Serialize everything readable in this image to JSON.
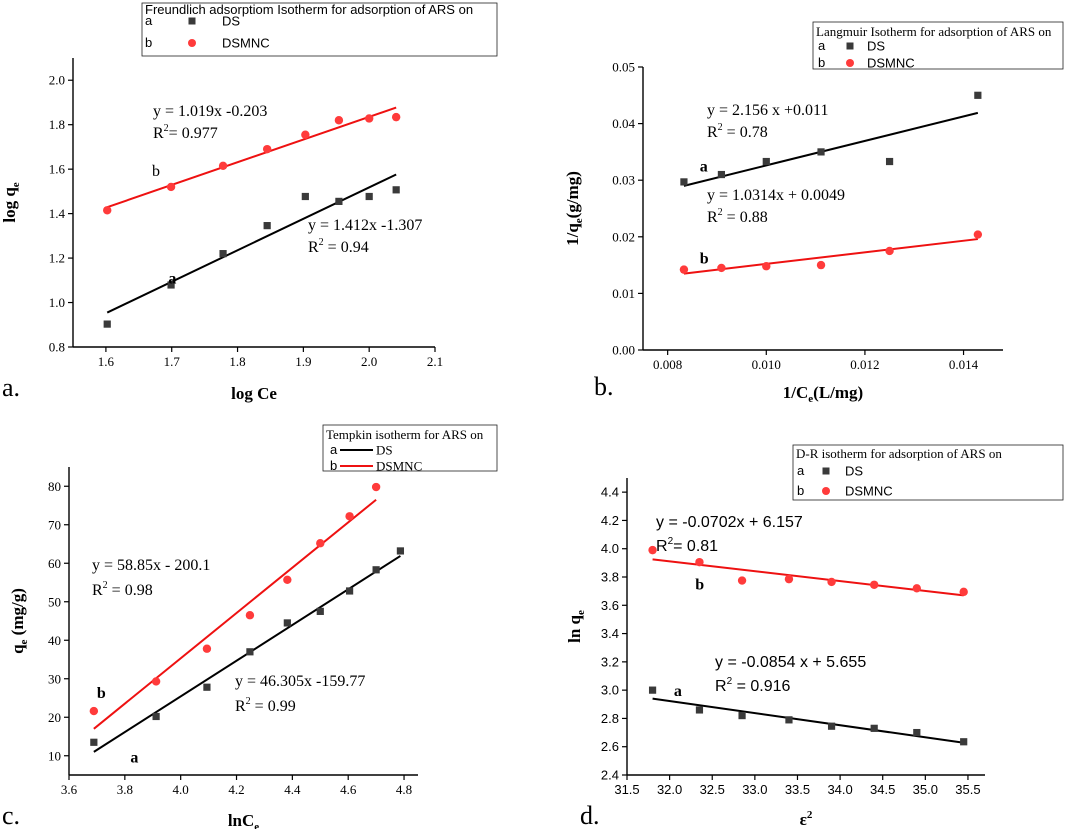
{
  "figure": {
    "colors": {
      "series_a": "#3a3a3a",
      "series_b": "#ff3b3b",
      "line_a": "#000000",
      "line_b": "#ee1111"
    }
  },
  "chart_data": [
    {
      "panel_label": "a.",
      "type": "scatter",
      "legend_title": "Freundlich adsorptiom Isotherm for adsorption of ARS on",
      "xlabel": "log Ce",
      "ylabel_main": "log q",
      "ylabel_sub": "e",
      "xlim": [
        1.55,
        2.1
      ],
      "ylim": [
        0.8,
        2.1
      ],
      "xticks": [
        1.6,
        1.7,
        1.8,
        1.9,
        2.0,
        2.1
      ],
      "yticks": [
        0.8,
        1.0,
        1.2,
        1.4,
        1.6,
        1.8,
        2.0
      ],
      "tick_decimals": 1,
      "series": [
        {
          "letter": "a",
          "name": "DS",
          "marker": "square",
          "legend_line": false,
          "x": [
            1.602,
            1.699,
            1.778,
            1.845,
            1.903,
            1.954,
            2.0,
            2.041
          ],
          "y": [
            0.903,
            1.079,
            1.22,
            1.346,
            1.477,
            1.455,
            1.477,
            1.507
          ],
          "fit": {
            "x": [
              1.602,
              2.041
            ],
            "y": [
              0.955,
              1.576
            ]
          },
          "eq": "y = 1.412x -1.307",
          "r2_prefix": "R",
          "r2_suffix": " = 0.94",
          "label_pos": [
            1.695,
            1.085
          ]
        },
        {
          "letter": "b",
          "name": "DSMNC",
          "marker": "circle",
          "legend_line": false,
          "x": [
            1.602,
            1.699,
            1.778,
            1.845,
            1.903,
            1.954,
            2.0,
            2.041
          ],
          "y": [
            1.415,
            1.52,
            1.615,
            1.69,
            1.755,
            1.82,
            1.828,
            1.834
          ],
          "fit": {
            "x": [
              1.602,
              2.041
            ],
            "y": [
              1.429,
              1.877
            ]
          },
          "eq": "y = 1.019x -0.203",
          "r2_prefix": "R",
          "r2_suffix": "= 0.977",
          "label_pos": [
            1.67,
            1.57
          ]
        }
      ]
    },
    {
      "panel_label": "b.",
      "type": "scatter",
      "legend_title": "Langmuir Isotherm for adsorption of ARS on",
      "xlabel_main": "1/C",
      "xlabel_sub": "e",
      "xlabel_tail": "(L/mg)",
      "ylabel_main": "1/q",
      "ylabel_sub": "e",
      "ylabel_tail": "(g/mg)",
      "xlim": [
        0.0075,
        0.0148
      ],
      "ylim": [
        0.0,
        0.05
      ],
      "xticks": [
        0.008,
        0.01,
        0.012,
        0.014
      ],
      "yticks": [
        0.0,
        0.01,
        0.02,
        0.03,
        0.04,
        0.05
      ],
      "tick_decimals": 3,
      "tick_decimals_y": 2,
      "series": [
        {
          "letter": "a",
          "name": "DS",
          "marker": "square",
          "legend_line": false,
          "x": [
            0.00833,
            0.00909,
            0.01,
            0.01111,
            0.0125,
            0.01429
          ],
          "y": [
            0.0297,
            0.031,
            0.0333,
            0.035,
            0.0333,
            0.045
          ],
          "fit": {
            "x": [
              0.00833,
              0.01429
            ],
            "y": [
              0.029,
              0.0419
            ]
          },
          "eq": "y = 2.156 x +0.011",
          "r2_prefix": "R",
          "r2_suffix": " = 0.78",
          "label_pos": [
            0.00865,
            0.0315
          ]
        },
        {
          "letter": "b",
          "name": "DSMNC",
          "marker": "circle",
          "legend_line": false,
          "x": [
            0.00833,
            0.00909,
            0.01,
            0.01111,
            0.0125,
            0.01429
          ],
          "y": [
            0.0142,
            0.0145,
            0.0148,
            0.015,
            0.0175,
            0.0204
          ],
          "fit": {
            "x": [
              0.00833,
              0.01429
            ],
            "y": [
              0.0135,
              0.0196
            ]
          },
          "eq": "y = 1.0314x + 0.0049",
          "r2_prefix": "R",
          "r2_suffix": " = 0.88",
          "label_pos": [
            0.00865,
            0.0153
          ]
        }
      ]
    },
    {
      "panel_label": "c.",
      "type": "scatter",
      "legend_title": "Tempkin isotherm for ARS on",
      "xlabel_main": "lnC",
      "xlabel_sub": "e",
      "ylabel_main": "q",
      "ylabel_sub": "e",
      "ylabel_tail": " (mg/g)",
      "xlim": [
        3.6,
        4.85
      ],
      "ylim": [
        5,
        85
      ],
      "xticks": [
        3.6,
        3.8,
        4.0,
        4.2,
        4.4,
        4.6,
        4.8
      ],
      "yticks": [
        10,
        20,
        30,
        40,
        50,
        60,
        70,
        80
      ],
      "tick_decimals": 1,
      "tick_decimals_y": 0,
      "series": [
        {
          "letter": "a",
          "name": "DS",
          "marker": "square",
          "legend_line": true,
          "x": [
            3.689,
            3.912,
            4.094,
            4.248,
            4.382,
            4.5,
            4.605,
            4.7,
            4.787
          ],
          "y": [
            13.5,
            20.2,
            27.8,
            37.0,
            44.5,
            47.5,
            52.8,
            58.3,
            63.2
          ],
          "fit": {
            "x": [
              3.689,
              4.787
            ],
            "y": [
              11.0,
              61.9
            ]
          },
          "eq": "y = 46.305x -159.77",
          "r2_prefix": "R",
          "r2_suffix": " = 0.99",
          "label_pos": [
            3.82,
            8.3
          ]
        },
        {
          "letter": "b",
          "name": "DSMNC",
          "marker": "circle",
          "legend_line": true,
          "x": [
            3.689,
            3.912,
            4.094,
            4.248,
            4.382,
            4.5,
            4.605,
            4.7
          ],
          "y": [
            21.6,
            29.3,
            37.8,
            46.5,
            55.7,
            65.2,
            72.2,
            79.8
          ],
          "fit": {
            "x": [
              3.689,
              4.7
            ],
            "y": [
              17.0,
              76.5
            ]
          },
          "eq": "y = 58.85x - 200.1",
          "r2_prefix": "R",
          "r2_suffix": " = 0.98",
          "label_pos": [
            3.7,
            25.0
          ]
        }
      ]
    },
    {
      "panel_label": "d.",
      "type": "scatter",
      "font": "sans",
      "legend_title": "D-R isotherm for adsorption of ARS on",
      "xlabel_main": "ε",
      "xlabel_sup": "2",
      "ylabel_main": "ln q",
      "ylabel_sub": "e",
      "xlim": [
        31.5,
        35.7
      ],
      "ylim": [
        2.4,
        4.5
      ],
      "xticks": [
        31.5,
        32.0,
        32.5,
        33.0,
        33.5,
        34.0,
        34.5,
        35.0,
        35.5
      ],
      "yticks": [
        2.4,
        2.6,
        2.8,
        3.0,
        3.2,
        3.4,
        3.6,
        3.8,
        4.0,
        4.2,
        4.4
      ],
      "tick_decimals": 1,
      "series": [
        {
          "letter": "a",
          "name": "DS",
          "marker": "square",
          "legend_line": false,
          "x": [
            31.8,
            32.35,
            32.85,
            33.4,
            33.9,
            34.4,
            34.9,
            35.45
          ],
          "y": [
            3.0,
            2.86,
            2.82,
            2.79,
            2.745,
            2.73,
            2.7,
            2.635
          ],
          "fit": {
            "x": [
              31.8,
              35.45
            ],
            "y": [
              2.94,
              2.628
            ]
          },
          "eq": "y = -0.0854 x + 5.655",
          "r2_prefix": "R",
          "r2_suffix": " = 0.916",
          "label_pos": [
            32.05,
            2.96
          ]
        },
        {
          "letter": "b",
          "name": "DSMNC",
          "marker": "circle",
          "legend_line": false,
          "x": [
            31.8,
            32.35,
            32.85,
            33.4,
            33.9,
            34.4,
            34.9,
            35.45
          ],
          "y": [
            3.99,
            3.905,
            3.775,
            3.785,
            3.765,
            3.745,
            3.72,
            3.695
          ],
          "fit": {
            "x": [
              31.8,
              35.45
            ],
            "y": [
              3.925,
              3.67
            ]
          },
          "eq": "y = -0.0702x + 6.157",
          "r2_prefix": "R",
          "r2_suffix": "= 0.81",
          "label_pos": [
            32.3,
            3.71
          ]
        }
      ]
    }
  ]
}
